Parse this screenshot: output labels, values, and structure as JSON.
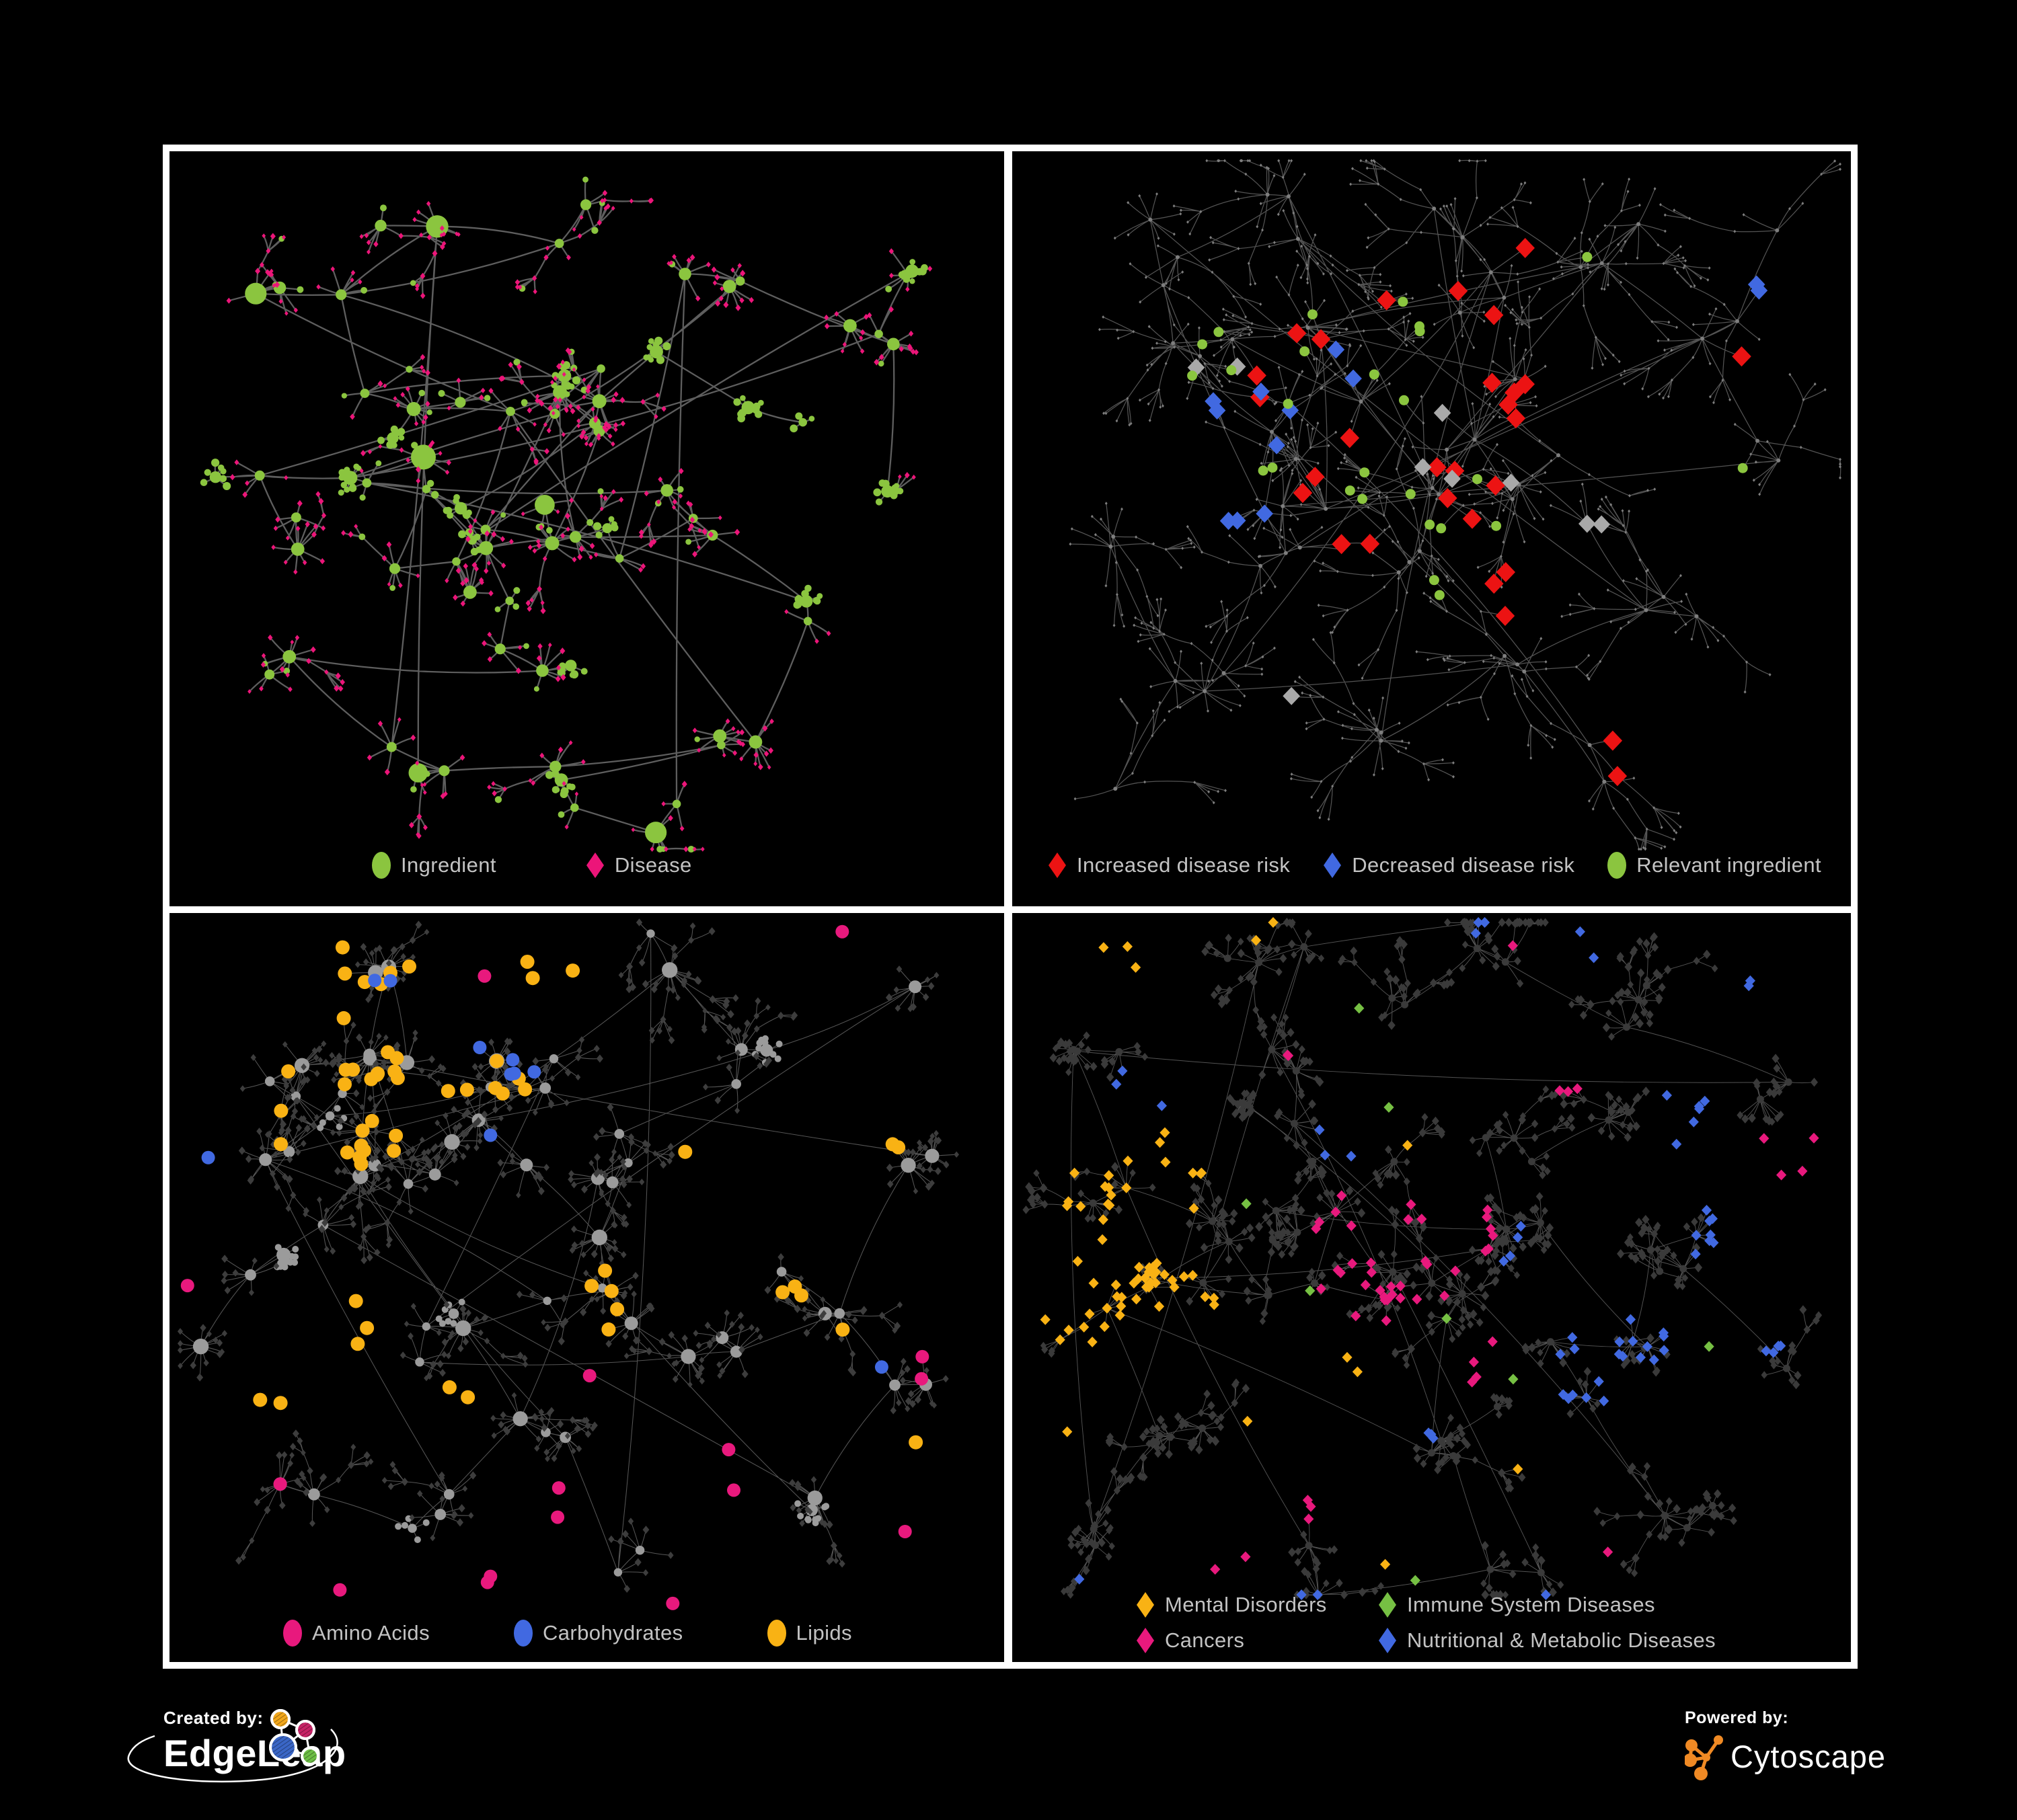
{
  "colors": {
    "background": "#000000",
    "panel_border": "#FFFFFF",
    "legend_text": "#C3C3C3"
  },
  "panels": [
    {
      "id": "ingredient-disease",
      "legend": {
        "items": [
          {
            "label": "Ingredient",
            "shape": "circle",
            "color": "#8BC53F"
          },
          {
            "label": "Disease",
            "shape": "diamond",
            "color": "#EC1579"
          }
        ]
      },
      "network": {
        "edge_color": "#6E6E6E",
        "node_colors": {
          "ingredient": "#8BC53F",
          "disease": "#EC1579"
        }
      }
    },
    {
      "id": "disease-risk",
      "legend": {
        "items": [
          {
            "label": "Increased disease risk",
            "shape": "diamond",
            "color": "#EC1313"
          },
          {
            "label": "Decreased disease risk",
            "shape": "diamond",
            "color": "#4169E1"
          },
          {
            "label": "Relevant ingredient",
            "shape": "circle",
            "color": "#8BC53F"
          }
        ]
      },
      "network": {
        "edge_color": "#575757",
        "base_node_color": "#7E7E7E",
        "highlight_colors": {
          "increased": "#EC1313",
          "decreased": "#4169E1",
          "neutral": "#A9A9A9",
          "ingredient": "#8BC53F"
        }
      }
    },
    {
      "id": "nutrient-classes",
      "legend": {
        "items": [
          {
            "label": "Amino Acids",
            "shape": "circle",
            "color": "#E8197D"
          },
          {
            "label": "Carbohydrates",
            "shape": "circle",
            "color": "#4169E1"
          },
          {
            "label": "Lipids",
            "shape": "circle",
            "color": "#F9B214"
          }
        ]
      },
      "network": {
        "edge_color": "#8D8D8D",
        "base_hub_color": "#9B9B9B",
        "base_leaf_color": "#3D3D3D",
        "highlight_colors": {
          "amino_acids": "#E8197D",
          "carbohydrates": "#4169E1",
          "lipids": "#F9B214"
        }
      }
    },
    {
      "id": "disease-classes",
      "legend": {
        "items": [
          {
            "label": "Mental Disorders",
            "shape": "diamond",
            "color": "#F9B214"
          },
          {
            "label": "Immune System Diseases",
            "shape": "diamond",
            "color": "#76C043"
          },
          {
            "label": "Cancers",
            "shape": "diamond",
            "color": "#E8197D"
          },
          {
            "label": "Nutritional & Metabolic Diseases",
            "shape": "diamond",
            "color": "#4169E1"
          }
        ]
      },
      "network": {
        "edge_color": "#989898",
        "base_node_color": "#3A3A3A",
        "highlight_colors": {
          "mental_disorders": "#F9B214",
          "immune_system_diseases": "#76C043",
          "cancers": "#E8197D",
          "nutritional_metabolic_diseases": "#4169E1"
        }
      }
    }
  ],
  "footer": {
    "created_by": {
      "label": "Created by:",
      "brand": "EdgeLeap",
      "logo_colors": {
        "orange": "#F2A71B",
        "magenta": "#C72366",
        "blue": "#3A66C6",
        "green": "#6DBE45",
        "line": "#FFFFFF"
      }
    },
    "powered_by": {
      "label": "Powered by:",
      "brand": "Cytoscape",
      "logo_color": "#F08A24"
    }
  }
}
